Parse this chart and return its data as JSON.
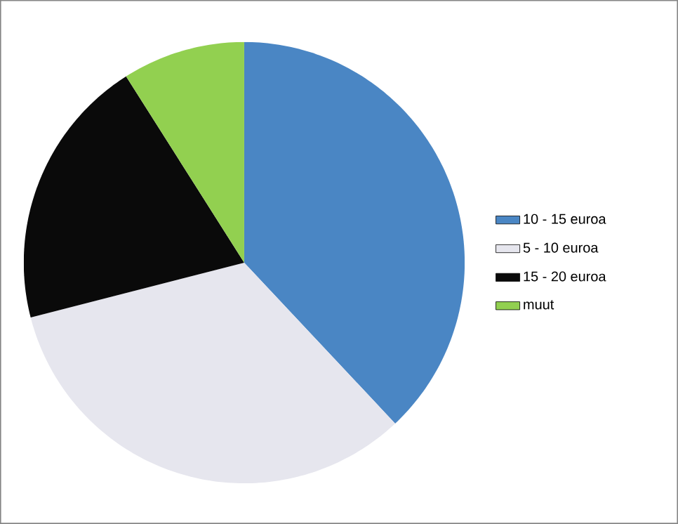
{
  "chart_data": {
    "type": "pie",
    "categories": [
      "10 - 15 euroa",
      "5 - 10 euroa",
      "15 - 20 euroa",
      "muut"
    ],
    "values": [
      38,
      33,
      20,
      9
    ],
    "colors": [
      "#4a86c4",
      "#e6e6ee",
      "#0a0a0a",
      "#92d050"
    ],
    "legend": "right"
  }
}
